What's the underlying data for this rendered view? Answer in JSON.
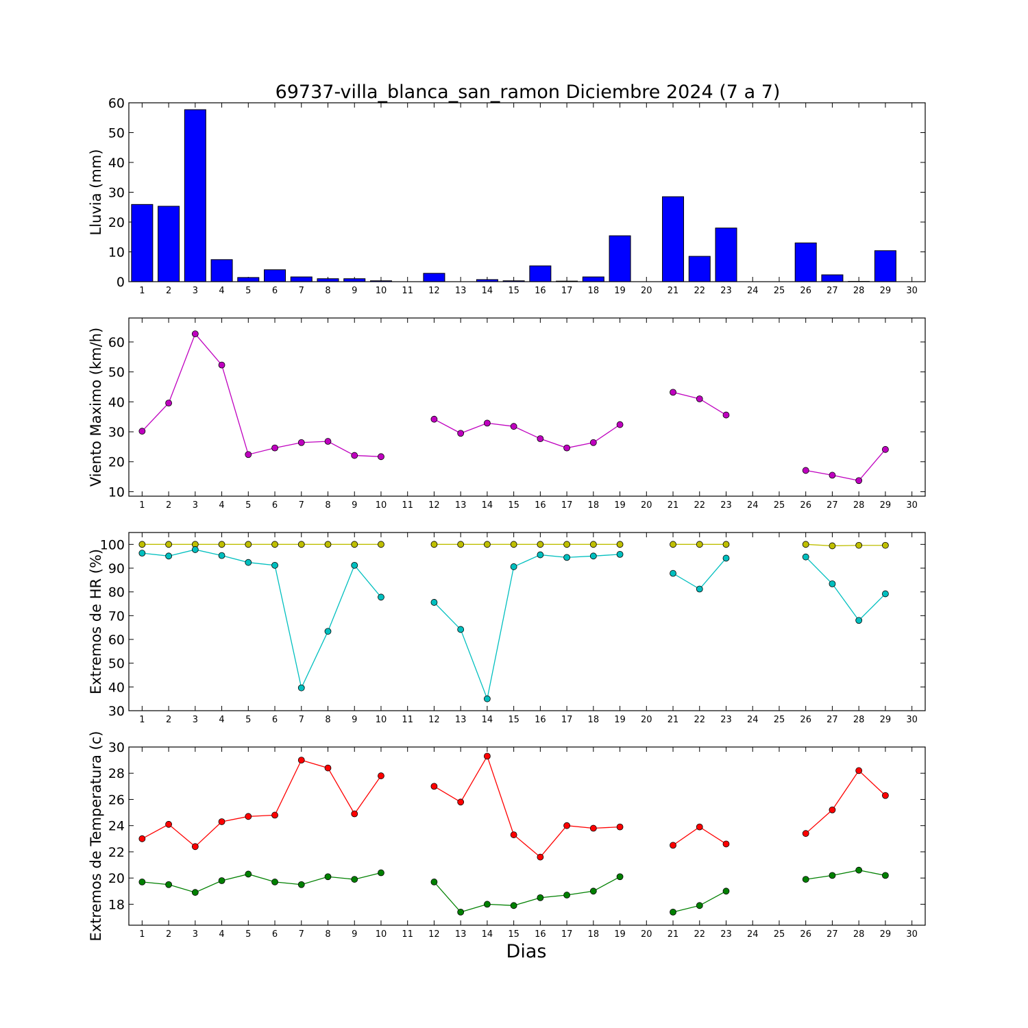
{
  "title": "69737-villa_blanca_san_ramon Diciembre 2024  (7 a 7)",
  "xlabel": "Dias",
  "colors": {
    "bar": "#0000ff",
    "wind": "#bf00bf",
    "hr_max": "#bfbf00",
    "hr_min": "#00bfbf",
    "temp_max": "#ff0000",
    "temp_min": "#008000"
  },
  "chart_data": [
    {
      "type": "bar",
      "ylabel": "Lluvia (mm)",
      "ylim": [
        0,
        60
      ],
      "yticks": [
        0,
        10,
        20,
        30,
        40,
        50,
        60
      ],
      "xlim": [
        0.5,
        30.5
      ],
      "xticks": [
        1,
        2,
        3,
        4,
        5,
        6,
        7,
        8,
        9,
        10,
        11,
        12,
        13,
        14,
        15,
        16,
        17,
        18,
        19,
        20,
        21,
        22,
        23,
        24,
        25,
        26,
        27,
        28,
        29,
        30
      ],
      "grid": false,
      "series": [
        {
          "values": [
            25.9,
            25.3,
            57.7,
            7.4,
            1.4,
            4.0,
            1.6,
            1.0,
            1.0,
            0.3,
            null,
            2.8,
            null,
            0.7,
            0.3,
            5.3,
            0.2,
            1.6,
            15.4,
            null,
            28.5,
            8.5,
            18.0,
            null,
            null,
            13.0,
            2.3,
            0.1,
            10.4,
            null
          ]
        }
      ]
    },
    {
      "type": "line",
      "ylabel": "Viento Maximo (km/h)",
      "ylim": [
        8.5,
        68
      ],
      "yticks": [
        10,
        20,
        30,
        40,
        50,
        60
      ],
      "xlim": [
        0.5,
        30.5
      ],
      "xticks": [
        1,
        2,
        3,
        4,
        5,
        6,
        7,
        8,
        9,
        10,
        11,
        12,
        13,
        14,
        15,
        16,
        17,
        18,
        19,
        20,
        21,
        22,
        23,
        24,
        25,
        26,
        27,
        28,
        29,
        30
      ],
      "grid": false,
      "series": [
        {
          "values": [
            30.2,
            39.6,
            62.7,
            52.3,
            22.4,
            24.6,
            26.4,
            26.8,
            22.1,
            21.7,
            null,
            34.2,
            29.5,
            32.9,
            31.8,
            27.7,
            24.6,
            26.4,
            32.4,
            null,
            43.2,
            41.0,
            35.6,
            null,
            null,
            17.1,
            15.5,
            13.7,
            24.1,
            null
          ]
        }
      ]
    },
    {
      "type": "line",
      "ylabel": "Extremos de HR (%)",
      "ylim": [
        30,
        105
      ],
      "yticks": [
        30,
        40,
        50,
        60,
        70,
        80,
        90,
        100
      ],
      "xlim": [
        0.5,
        30.5
      ],
      "xticks": [
        1,
        2,
        3,
        4,
        5,
        6,
        7,
        8,
        9,
        10,
        11,
        12,
        13,
        14,
        15,
        16,
        17,
        18,
        19,
        20,
        21,
        22,
        23,
        24,
        25,
        26,
        27,
        28,
        29,
        30
      ],
      "grid": false,
      "series": [
        {
          "values": [
            100,
            100,
            100,
            100,
            100,
            100,
            100,
            100,
            100,
            100,
            null,
            100,
            100,
            100,
            100,
            100,
            100,
            100,
            100,
            null,
            100,
            100,
            100,
            null,
            null,
            100,
            99.4,
            99.6,
            99.6,
            null
          ]
        },
        {
          "values": [
            96.3,
            95.1,
            97.8,
            95.3,
            92.4,
            91.2,
            39.6,
            63.4,
            91.2,
            77.8,
            null,
            75.6,
            64.2,
            35.0,
            90.6,
            95.6,
            94.5,
            95.1,
            95.8,
            null,
            87.8,
            81.2,
            94.2,
            null,
            null,
            94.7,
            83.4,
            68.0,
            79.2,
            null
          ]
        }
      ]
    },
    {
      "type": "line",
      "ylabel": "Extremos de Temperatura (c)",
      "ylim": [
        16.4,
        30
      ],
      "yticks": [
        18,
        20,
        22,
        24,
        26,
        28,
        30
      ],
      "xlim": [
        0.5,
        30.5
      ],
      "xticks": [
        1,
        2,
        3,
        4,
        5,
        6,
        7,
        8,
        9,
        10,
        11,
        12,
        13,
        14,
        15,
        16,
        17,
        18,
        19,
        20,
        21,
        22,
        23,
        24,
        25,
        26,
        27,
        28,
        29,
        30
      ],
      "grid": false,
      "series": [
        {
          "values": [
            23.0,
            24.1,
            22.4,
            24.3,
            24.7,
            24.8,
            29.0,
            28.4,
            24.9,
            27.8,
            null,
            27.0,
            25.8,
            29.3,
            23.3,
            21.6,
            24.0,
            23.8,
            23.9,
            null,
            22.5,
            23.9,
            22.6,
            null,
            null,
            23.4,
            25.2,
            28.2,
            26.3,
            null
          ]
        },
        {
          "values": [
            19.7,
            19.5,
            18.9,
            19.8,
            20.3,
            19.7,
            19.5,
            20.1,
            19.9,
            20.4,
            null,
            19.7,
            17.4,
            18.0,
            17.9,
            18.5,
            18.7,
            19.0,
            20.1,
            null,
            17.4,
            17.9,
            19.0,
            null,
            null,
            19.9,
            20.2,
            20.6,
            20.2,
            null
          ]
        }
      ]
    }
  ]
}
